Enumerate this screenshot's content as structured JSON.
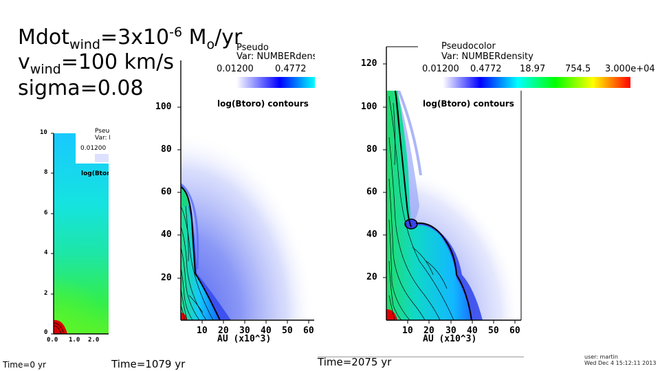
{
  "header": {
    "mdot_prefix": "Mdot",
    "mdot_sub": "wind",
    "mdot_value": "=3x10",
    "mdot_exp": "-6",
    "mdot_unit_m": " M",
    "mdot_unit_sub": "o",
    "mdot_unit_rest": "/yr",
    "v_prefix": "v",
    "v_sub": "wind",
    "v_value": "=100 km/s",
    "sigma": "sigma=0.08"
  },
  "panels": {
    "small": {
      "legend_title": "Pseudocolor",
      "legend_var": "Var: NUMBERdensity",
      "legend_min": "0.01200",
      "contour_label": "log(Btoro) contours",
      "y_ticks": [
        "10",
        "8",
        "6",
        "4",
        "2",
        "0"
      ],
      "x_ticks": [
        "0.0",
        "1.0",
        "2.0"
      ],
      "time": "Time=0 yr"
    },
    "middle": {
      "legend_title": "Pseudocolor",
      "legend_var": "Var: NUMBERdensity",
      "legend_values": [
        "0.01200",
        "0.4772"
      ],
      "contour_label": "log(Btoro) contours",
      "y_ticks": [
        "100",
        "80",
        "60",
        "40",
        "20"
      ],
      "x_ticks": [
        "10",
        "20",
        "30",
        "40",
        "50",
        "60"
      ],
      "x_label": "AU (x10^3)",
      "time": "Time=1079 yr"
    },
    "right": {
      "legend_title": "Pseudocolor",
      "legend_var": "Var: NUMBERdensity",
      "legend_values": [
        "0.01200",
        "0.4772",
        "18.97",
        "754.5",
        "3.000e+04"
      ],
      "contour_label": "log(Btoro) contours",
      "y_ticks": [
        "120",
        "100",
        "80",
        "60",
        "40",
        "20"
      ],
      "x_ticks": [
        "10",
        "20",
        "30",
        "40",
        "50",
        "60"
      ],
      "x_label": "AU (x10^3)",
      "time": "Time=2075 yr"
    }
  },
  "user_info": {
    "user": "user: martin",
    "date": "Wed Dec  4 15:12:11 2013"
  },
  "colors": {
    "colormap": [
      "#ffffff",
      "#0000ff",
      "#00ffff",
      "#00ff00",
      "#ffff00",
      "#ff0000"
    ],
    "low_density": "#e8ecff",
    "shell": "#2a3ae0"
  }
}
